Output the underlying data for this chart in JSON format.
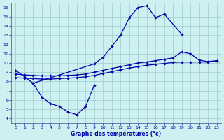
{
  "title": "Graphe des températures (°c)",
  "bg_color": "#cff0f0",
  "line_color": "#0000aa",
  "grid_color": "#99cccc",
  "x_ticks": [
    0,
    1,
    2,
    3,
    4,
    5,
    6,
    7,
    8,
    9,
    10,
    11,
    12,
    13,
    14,
    15,
    16,
    17,
    18,
    19,
    20,
    21,
    22,
    23
  ],
  "y_ticks": [
    4,
    5,
    6,
    7,
    8,
    9,
    10,
    11,
    12,
    13,
    14,
    15,
    16
  ],
  "xlim": [
    -0.5,
    23.5
  ],
  "ylim": [
    3.5,
    16.5
  ],
  "series": [
    {
      "x": [
        0,
        1,
        2,
        9,
        10,
        11,
        12,
        13,
        14,
        15,
        16,
        17,
        19
      ],
      "y": [
        9.2,
        8.5,
        7.8,
        9.9,
        10.6,
        11.8,
        13.0,
        14.9,
        16.0,
        16.2,
        14.9,
        15.3,
        13.1
      ]
    },
    {
      "x": [
        2,
        3,
        4,
        5,
        6,
        7,
        8,
        9
      ],
      "y": [
        7.8,
        6.3,
        5.6,
        5.3,
        4.7,
        4.4,
        5.3,
        7.6
      ]
    },
    {
      "x": [
        0,
        1,
        2,
        3,
        4,
        5,
        6,
        7,
        8,
        9,
        10,
        11,
        12,
        13,
        14,
        15,
        16,
        17,
        18,
        19,
        20,
        21,
        22,
        23
      ],
      "y": [
        8.8,
        8.7,
        8.65,
        8.6,
        8.6,
        8.6,
        8.65,
        8.7,
        8.8,
        9.0,
        9.2,
        9.4,
        9.6,
        9.8,
        10.0,
        10.1,
        10.25,
        10.4,
        10.55,
        11.2,
        11.0,
        10.3,
        10.15,
        10.25
      ]
    },
    {
      "x": [
        0,
        1,
        2,
        3,
        4,
        5,
        6,
        7,
        8,
        9,
        10,
        11,
        12,
        13,
        14,
        15,
        16,
        17,
        18,
        19,
        20,
        21,
        22,
        23
      ],
      "y": [
        8.4,
        8.35,
        8.3,
        8.25,
        8.25,
        8.3,
        8.35,
        8.4,
        8.5,
        8.65,
        8.85,
        9.05,
        9.25,
        9.45,
        9.6,
        9.75,
        9.85,
        9.95,
        10.05,
        10.1,
        10.1,
        10.1,
        10.1,
        10.2
      ]
    }
  ]
}
